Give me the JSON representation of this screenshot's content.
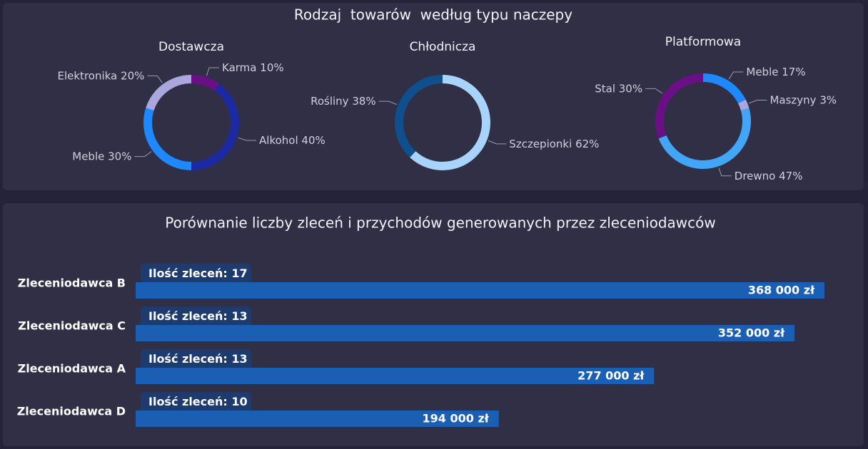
{
  "title": "Rodzaj  towarów  według typu naczepy",
  "chart_data": [
    {
      "type": "pie",
      "title": "Dostawcza",
      "categories": [
        "Karma",
        "Alkohol",
        "Meble",
        "Elektronika"
      ],
      "values": [
        10,
        40,
        30,
        20
      ],
      "value_labels": [
        "10%",
        "40%",
        "30%",
        "20%"
      ],
      "colors": [
        "#6a0f86",
        "#1b2aa3",
        "#1e88ff",
        "#a9a7dd"
      ],
      "donut": true
    },
    {
      "type": "pie",
      "title": "Chłodnicza",
      "categories": [
        "Szczepionki",
        "Rośliny"
      ],
      "values": [
        62,
        38
      ],
      "value_labels": [
        "62%",
        "38%"
      ],
      "colors": [
        "#a8d4fb",
        "#0f4f8e"
      ],
      "donut": true
    },
    {
      "type": "pie",
      "title": "Platformowa",
      "categories": [
        "Meble",
        "Maszyny",
        "Drewno",
        "Stal"
      ],
      "values": [
        17,
        3,
        47,
        30
      ],
      "value_labels": [
        "17%",
        "3%",
        "47%",
        "30%"
      ],
      "colors": [
        "#1e88ff",
        "#a9a7dd",
        "#42a5f5",
        "#6a0f86"
      ],
      "donut": true
    },
    {
      "type": "hbar",
      "title": "Porównanie liczby zleceń i przychodów generowanych przez zleceniodawców",
      "categories": [
        "Zleceniodawca B",
        "Zleceniodawca C",
        "Zleceniodawca A",
        "Zleceniodawca D"
      ],
      "values": [
        368000,
        352000,
        277000,
        194000
      ],
      "value_labels": [
        "368 000 zł",
        "352 000 zł",
        "277 000 zł",
        "194 000 zł"
      ],
      "color": "#1a5fb4",
      "orders_label": "Ilość zleceń:",
      "orders": [
        17,
        13,
        13,
        10
      ],
      "orders_color": "#1e3b70"
    }
  ]
}
